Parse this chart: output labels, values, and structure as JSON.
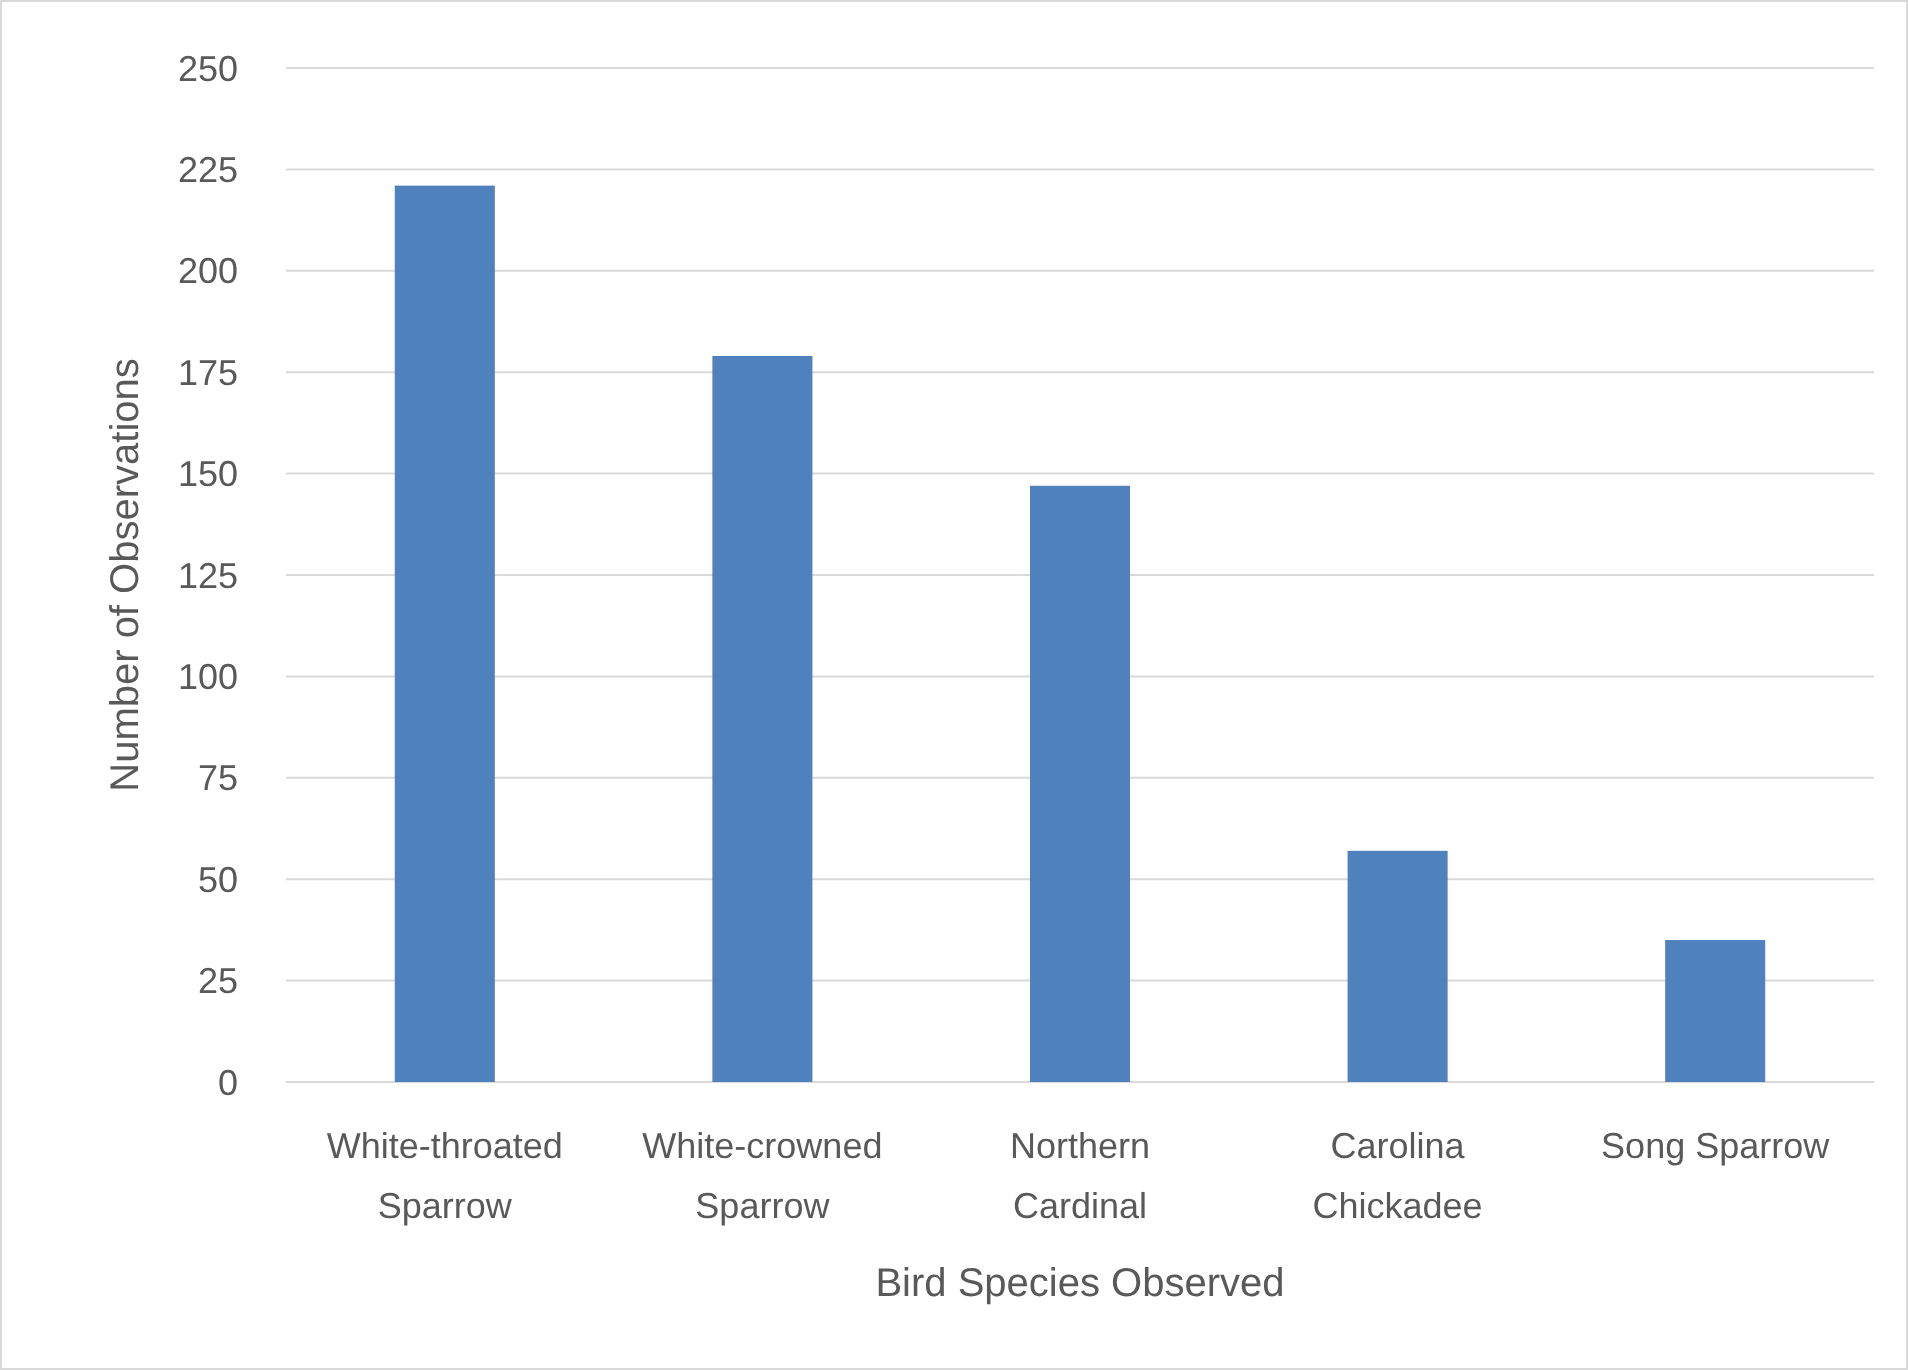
{
  "chart_data": {
    "type": "bar",
    "xlabel": "Bird Species Observed",
    "ylabel": "Number of Observations",
    "categories": [
      "White-throated Sparrow",
      "White-crowned Sparrow",
      "Northern Cardinal",
      "Carolina Chickadee",
      "Song Sparrow"
    ],
    "values": [
      221,
      179,
      147,
      57,
      35
    ],
    "color": "#4f81bd",
    "ylim": [
      0,
      250
    ],
    "yticks": [
      0,
      25,
      50,
      75,
      100,
      125,
      150,
      175,
      200,
      225,
      250
    ],
    "grid": "y"
  }
}
